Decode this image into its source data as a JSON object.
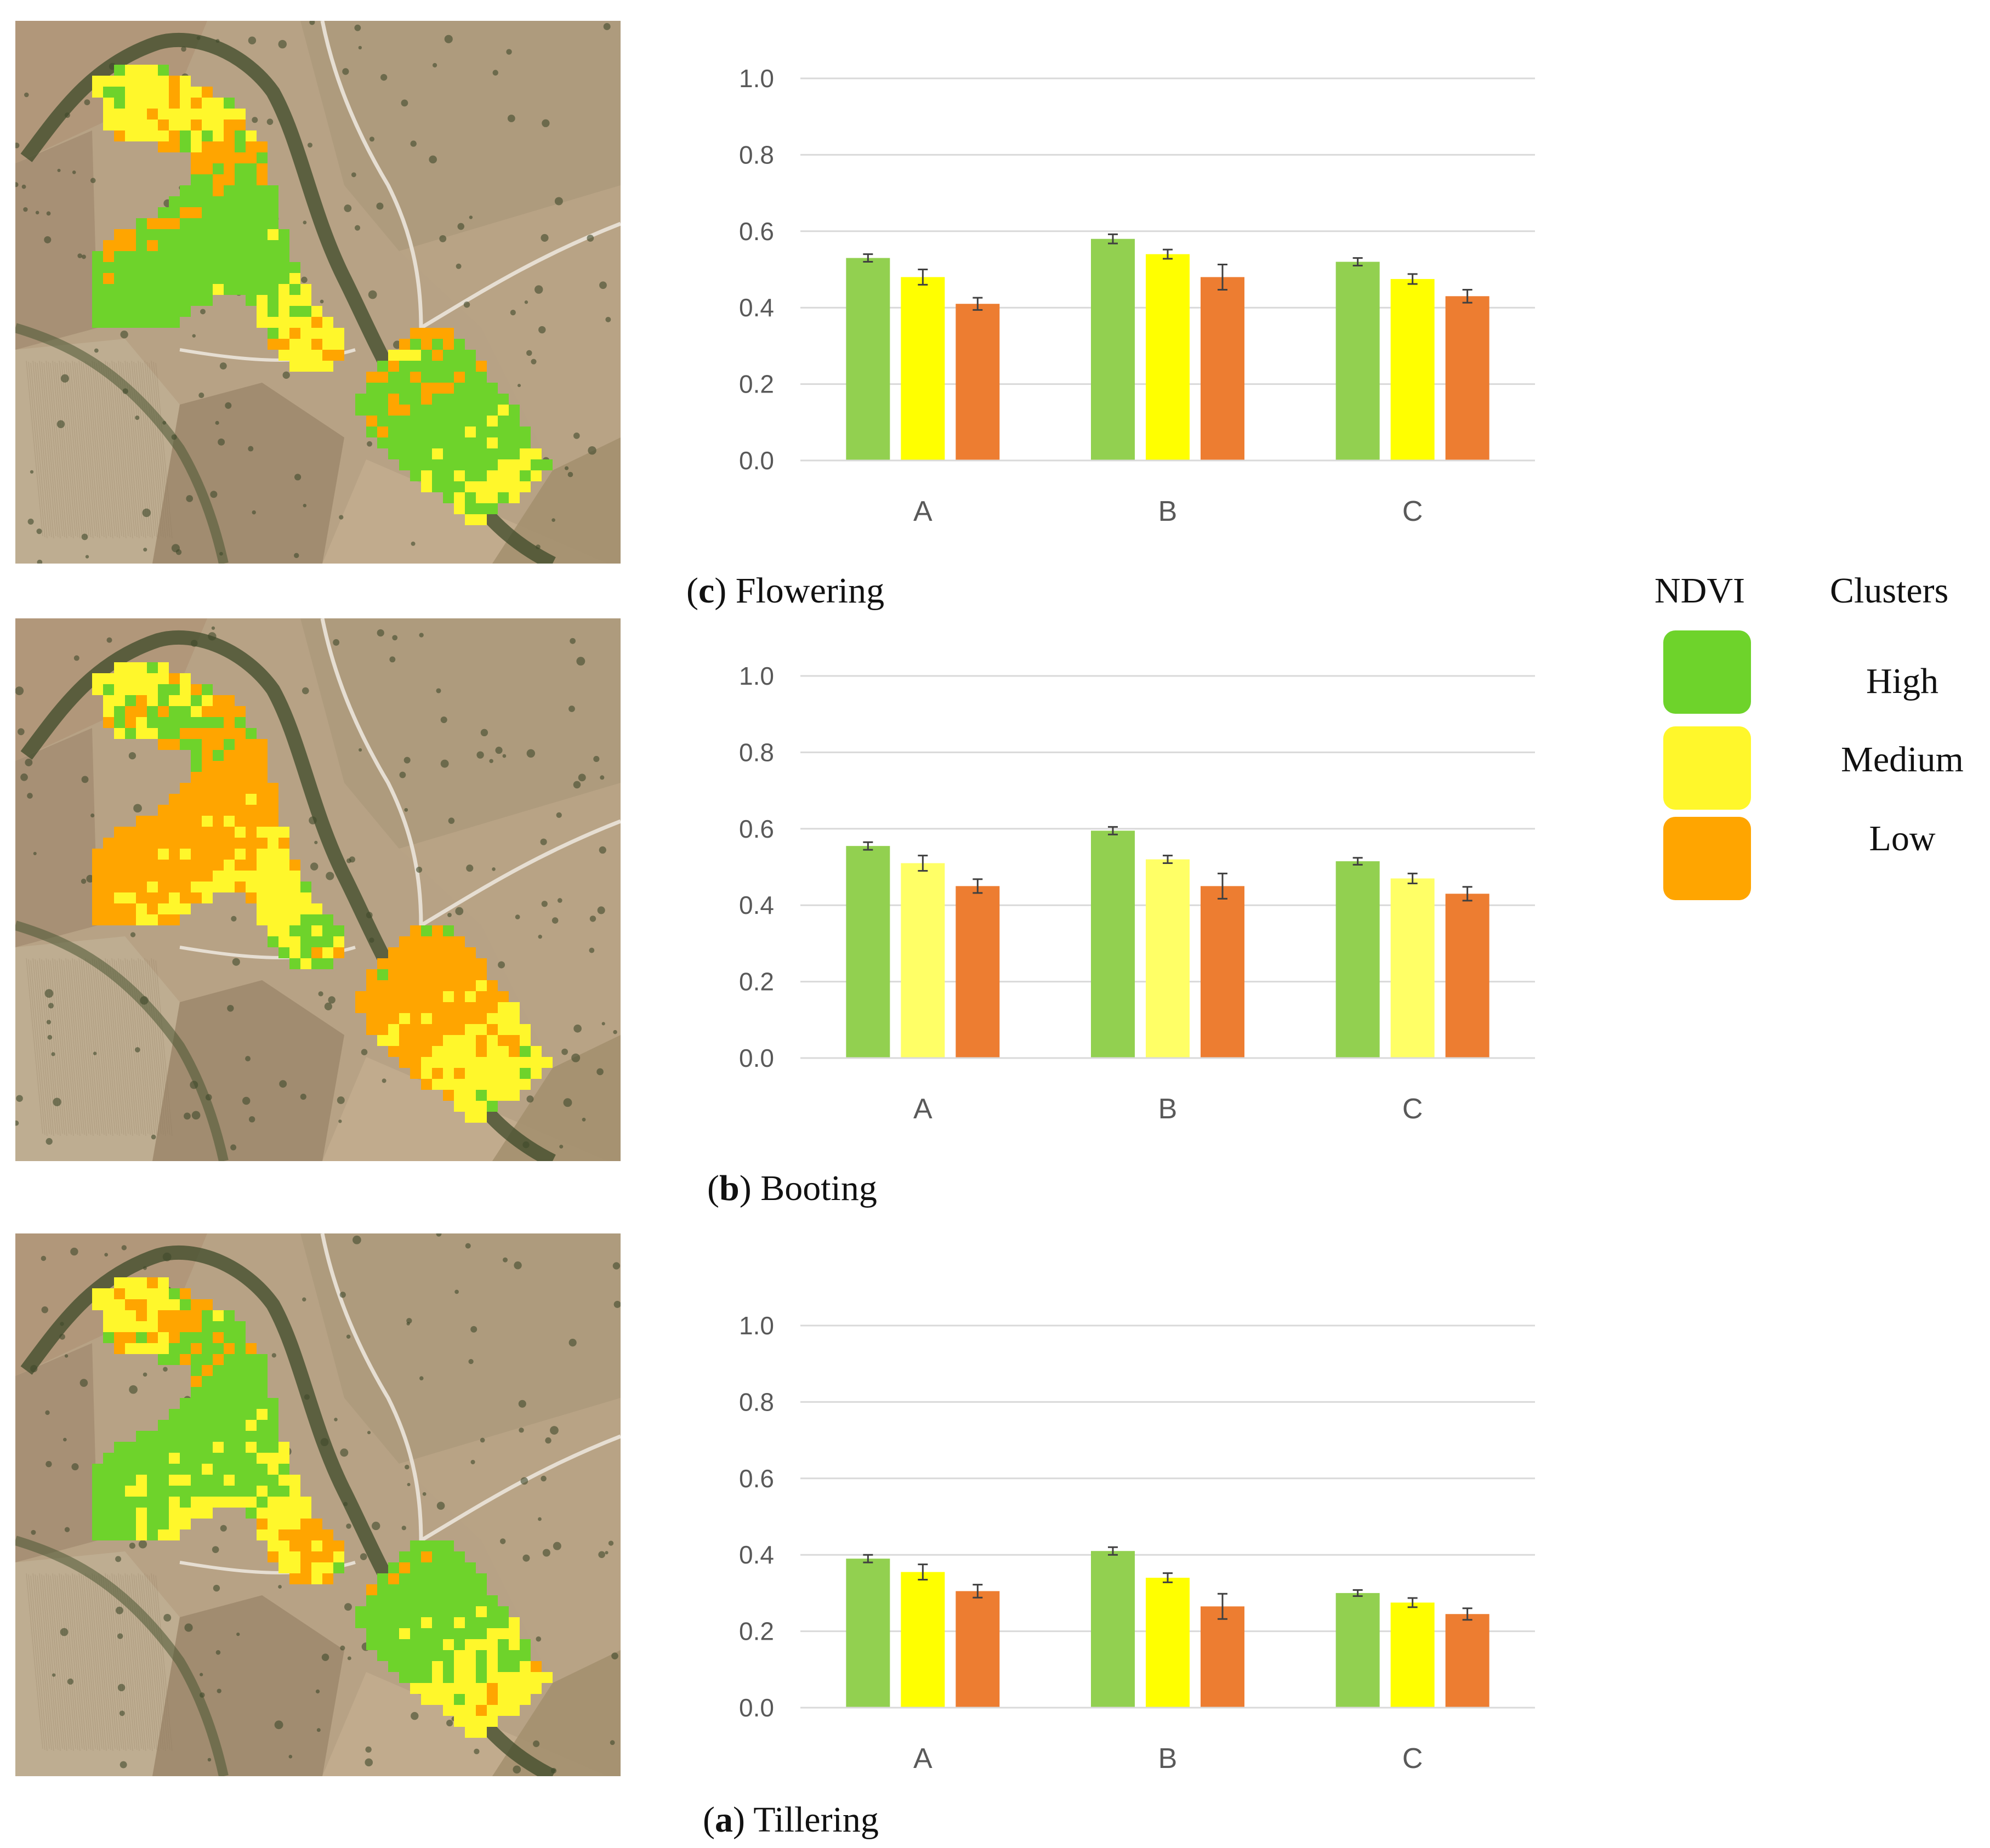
{
  "colors": {
    "high": "#92d050",
    "medium": "#ffff00",
    "medium_booting": "#ffff66",
    "low": "#ed7d31",
    "legend_high": "#6ed32b",
    "legend_medium": "#fff72b",
    "legend_low": "#ffa500"
  },
  "legend": {
    "title_left": "NDVI",
    "title_right": "Clusters",
    "items": [
      {
        "key": "high",
        "label": "High"
      },
      {
        "key": "medium",
        "label": "Medium"
      },
      {
        "key": "low",
        "label": "Low"
      }
    ]
  },
  "panels": [
    {
      "id": "c",
      "letter": "c",
      "caption": " Flowering",
      "map": "satellite-map-flowering"
    },
    {
      "id": "b",
      "letter": "b",
      "caption": " Booting",
      "map": "satellite-map-booting"
    },
    {
      "id": "a",
      "letter": "a",
      "caption": " Tillering",
      "map": "satellite-map-tillering"
    }
  ],
  "chart_data": [
    {
      "type": "bar",
      "title": "Flowering",
      "categories": [
        "A",
        "B",
        "C"
      ],
      "ylim": [
        0,
        1.0
      ],
      "yticks": [
        "0.0",
        "0.2",
        "0.4",
        "0.6",
        "0.8",
        "1.0"
      ],
      "grid": true,
      "series": [
        {
          "name": "High",
          "values": [
            0.53,
            0.58,
            0.52
          ],
          "errors": [
            0.01,
            0.012,
            0.01
          ]
        },
        {
          "name": "Medium",
          "values": [
            0.48,
            0.54,
            0.475
          ],
          "errors": [
            0.02,
            0.012,
            0.013
          ]
        },
        {
          "name": "Low",
          "values": [
            0.41,
            0.48,
            0.43
          ],
          "errors": [
            0.016,
            0.033,
            0.017
          ]
        }
      ]
    },
    {
      "type": "bar",
      "title": "Booting",
      "categories": [
        "A",
        "B",
        "C"
      ],
      "ylim": [
        0,
        1.0
      ],
      "yticks": [
        "0.0",
        "0.2",
        "0.4",
        "0.6",
        "0.8",
        "1.0"
      ],
      "grid": true,
      "series": [
        {
          "name": "High",
          "values": [
            0.555,
            0.595,
            0.515
          ],
          "errors": [
            0.01,
            0.01,
            0.009
          ]
        },
        {
          "name": "Medium",
          "values": [
            0.51,
            0.52,
            0.47
          ],
          "errors": [
            0.02,
            0.01,
            0.013
          ]
        },
        {
          "name": "Low",
          "values": [
            0.45,
            0.45,
            0.43
          ],
          "errors": [
            0.018,
            0.033,
            0.018
          ]
        }
      ]
    },
    {
      "type": "bar",
      "title": "Tillering",
      "categories": [
        "A",
        "B",
        "C"
      ],
      "ylim": [
        0,
        1.0
      ],
      "yticks": [
        "0.0",
        "0.2",
        "0.4",
        "0.6",
        "0.8",
        "1.0"
      ],
      "grid": true,
      "series": [
        {
          "name": "High",
          "values": [
            0.39,
            0.41,
            0.3
          ],
          "errors": [
            0.01,
            0.01,
            0.008
          ]
        },
        {
          "name": "Medium",
          "values": [
            0.355,
            0.34,
            0.275
          ],
          "errors": [
            0.02,
            0.012,
            0.012
          ]
        },
        {
          "name": "Low",
          "values": [
            0.305,
            0.265,
            0.245
          ],
          "errors": [
            0.017,
            0.033,
            0.015
          ]
        }
      ]
    }
  ]
}
